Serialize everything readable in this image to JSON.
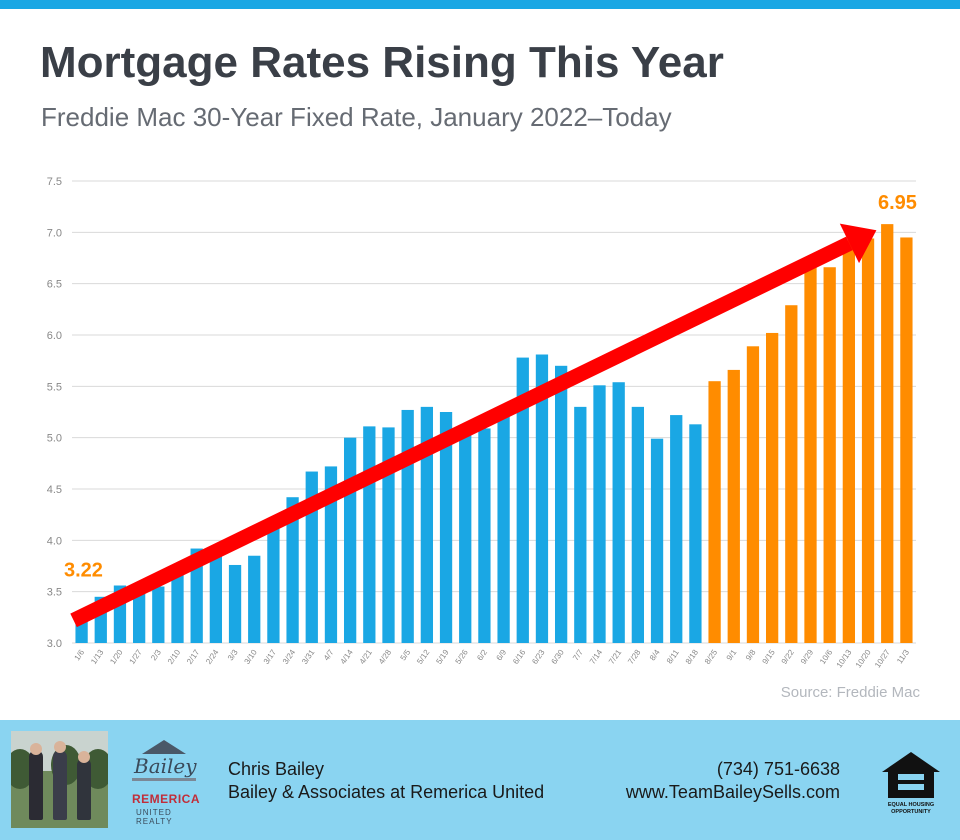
{
  "header": {
    "accent_color": "#1aa7e4"
  },
  "chart_data": {
    "type": "bar",
    "title": "Mortgage Rates Rising This Year",
    "subtitle": "Freddie Mac 30-Year Fixed Rate, January 2022–Today",
    "xlabel": "",
    "ylabel": "",
    "ylim": [
      3.0,
      7.5
    ],
    "yticks": [
      "3.0",
      "3.5",
      "4.0",
      "4.5",
      "5.0",
      "5.5",
      "6.0",
      "6.5",
      "7.0",
      "7.5"
    ],
    "grid": true,
    "categories": [
      "1/6",
      "1/13",
      "1/20",
      "1/27",
      "2/3",
      "2/10",
      "2/17",
      "2/24",
      "3/3",
      "3/10",
      "3/17",
      "3/24",
      "3/31",
      "4/7",
      "4/14",
      "4/21",
      "4/28",
      "5/5",
      "5/12",
      "5/19",
      "5/26",
      "6/2",
      "6/9",
      "6/16",
      "6/23",
      "6/30",
      "7/7",
      "7/14",
      "7/21",
      "7/28",
      "8/4",
      "8/11",
      "8/18",
      "8/25",
      "9/1",
      "9/8",
      "9/15",
      "9/22",
      "9/29",
      "10/6",
      "10/13",
      "10/20",
      "10/27",
      "11/3"
    ],
    "values": [
      3.22,
      3.45,
      3.56,
      3.55,
      3.55,
      3.69,
      3.92,
      3.89,
      3.76,
      3.85,
      4.16,
      4.42,
      4.67,
      4.72,
      5.0,
      5.11,
      5.1,
      5.27,
      5.3,
      5.25,
      5.1,
      5.09,
      5.23,
      5.78,
      5.81,
      5.7,
      5.3,
      5.51,
      5.54,
      5.3,
      4.99,
      5.22,
      5.13,
      5.55,
      5.66,
      5.89,
      6.02,
      6.29,
      6.7,
      6.66,
      6.92,
      6.94,
      7.08,
      6.95
    ],
    "highlight_from_index": 33,
    "colors": {
      "base": "#1aa7e4",
      "highlight": "#ff8c00",
      "arrow": "#ff0000",
      "grid": "#d9d9d9",
      "label": "#888888"
    },
    "annotations": [
      {
        "text": "3.22",
        "at_index": 0,
        "color": "#ff8c00"
      },
      {
        "text": "6.95",
        "at_index": 43,
        "color": "#ff8c00"
      }
    ],
    "trend_arrow": {
      "from_value": 3.22,
      "to_value": 7.02,
      "from_index": 0,
      "to_index": 43
    },
    "source": "Source: Freddie Mac"
  },
  "footer": {
    "background": "#8ad4f1",
    "agent_name": "Chris Bailey",
    "company": "Bailey & Associates at Remerica United",
    "phone": "(734) 751-6638",
    "website": "www.TeamBaileySells.com",
    "logo_text_primary": "Bailey",
    "logo_text_brand": "REMERICA",
    "logo_text_sub": "UNITED REALTY",
    "equal_housing_text": "EQUAL HOUSING OPPORTUNITY",
    "photo_icon": "team-photo",
    "eho_icon": "equal-housing-icon"
  }
}
